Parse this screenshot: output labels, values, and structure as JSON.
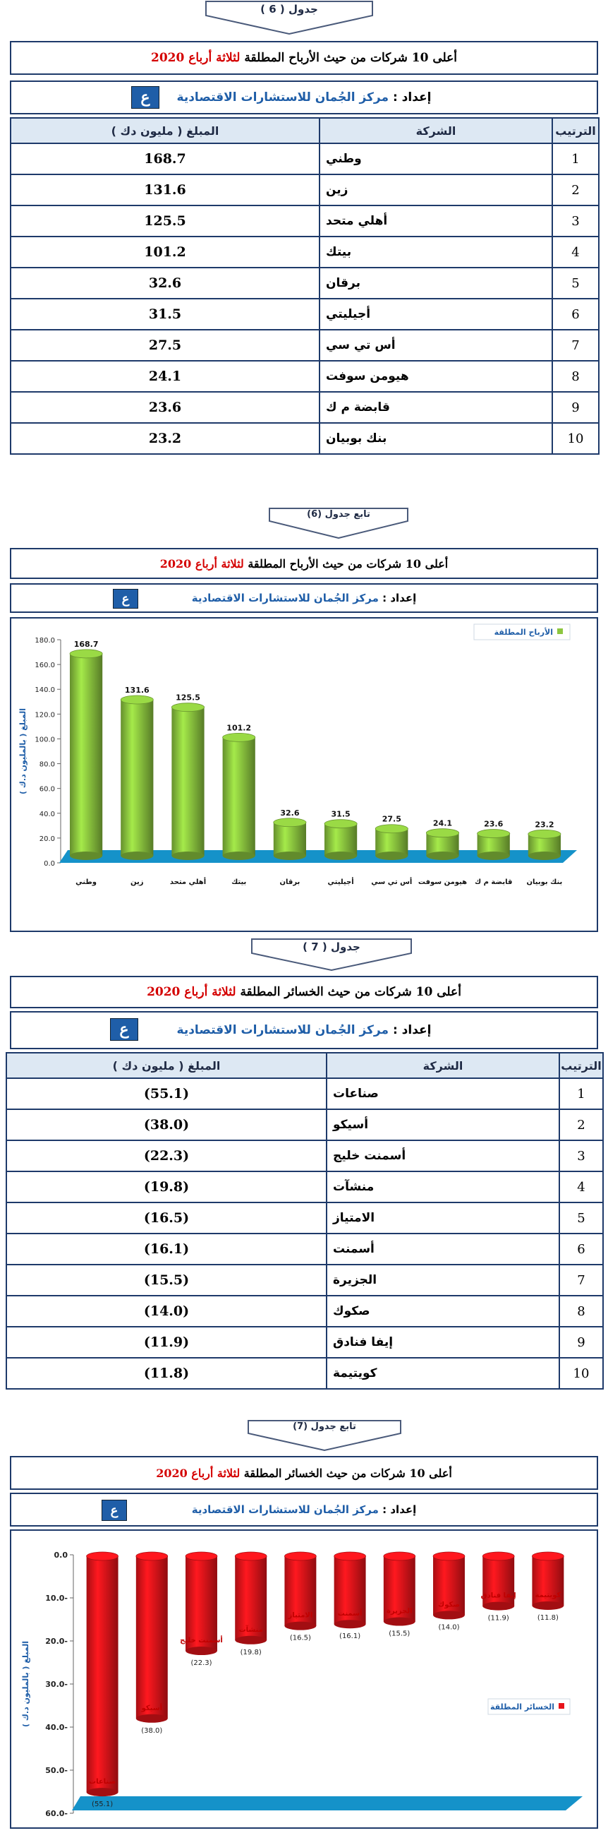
{
  "section6": {
    "table_label": "جدول ( 6 )",
    "title_prefix": "أعلى 10 شركات من حيث الأرباح المطلقة",
    "title_red": "لثلاثة أرباع 2020",
    "prep_label": "إعداد :",
    "prep_org": "مركز الجُمان للاستشارات الاقتصادية",
    "headers": {
      "rank": "الترتيب",
      "company": "الشركة",
      "amount": "المبلغ ( مليون دك )"
    },
    "rows": [
      {
        "rank": "1",
        "company": "وطني",
        "amount": "168.7"
      },
      {
        "rank": "2",
        "company": "زين",
        "amount": "131.6"
      },
      {
        "rank": "3",
        "company": "أهلي متحد",
        "amount": "125.5"
      },
      {
        "rank": "4",
        "company": "بيتك",
        "amount": "101.2"
      },
      {
        "rank": "5",
        "company": "برقان",
        "amount": "32.6"
      },
      {
        "rank": "6",
        "company": "أجيليتي",
        "amount": "31.5"
      },
      {
        "rank": "7",
        "company": "أس تي سي",
        "amount": "27.5"
      },
      {
        "rank": "8",
        "company": "هيومن سوفت",
        "amount": "24.1"
      },
      {
        "rank": "9",
        "company": "قابضة م ك",
        "amount": "23.6"
      },
      {
        "rank": "10",
        "company": "بنك بوبيان",
        "amount": "23.2"
      }
    ]
  },
  "section6b": {
    "table_label": "تابع جدول (6)",
    "title_prefix": "أعلى 10 شركات من حيث الأرباح المطلقة",
    "title_red": "لثلاثة أرباع 2020",
    "prep_label": "إعداد :",
    "prep_org": "مركز الجُمان للاستشارات الاقتصادية"
  },
  "section7": {
    "table_label": "جدول ( 7 )",
    "title_prefix": "أعلى 10 شركات من حيث الخسائر المطلقة",
    "title_red": "لثلاثة أرباع 2020",
    "prep_label": "إعداد :",
    "prep_org": "مركز الجُمان للاستشارات الاقتصادية",
    "headers": {
      "rank": "الترتيب",
      "company": "الشركة",
      "amount": "المبلغ ( مليون دك )"
    },
    "rows": [
      {
        "rank": "1",
        "company": "صناعات",
        "amount": "(55.1)"
      },
      {
        "rank": "2",
        "company": "أسيكو",
        "amount": "(38.0)"
      },
      {
        "rank": "3",
        "company": "أسمنت خليج",
        "amount": "(22.3)"
      },
      {
        "rank": "4",
        "company": "منشآت",
        "amount": "(19.8)"
      },
      {
        "rank": "5",
        "company": "الامتياز",
        "amount": "(16.5)"
      },
      {
        "rank": "6",
        "company": "أسمنت",
        "amount": "(16.1)"
      },
      {
        "rank": "7",
        "company": "الجزيرة",
        "amount": "(15.5)"
      },
      {
        "rank": "8",
        "company": "صكوك",
        "amount": "(14.0)"
      },
      {
        "rank": "9",
        "company": "إيفا فنادق",
        "amount": "(11.9)"
      },
      {
        "rank": "10",
        "company": "كويتيمة",
        "amount": "(11.8)"
      }
    ]
  },
  "section7b": {
    "table_label": "تابع جدول (7)",
    "title_prefix": "أعلى 10 شركات من حيث الخسائر المطلقة",
    "title_red": "لثلاثة أرباع 2020",
    "prep_label": "إعداد :",
    "prep_org": "مركز الجُمان للاستشارات الاقتصادية"
  },
  "logo_glyph": "ع",
  "colors": {
    "profit_bar": "#8cc63f",
    "loss_bar": "#e8141a",
    "floor": "#1592c9",
    "frame": "#1e3a6a",
    "title_red": "#d40000",
    "org_blue": "#1f5ea8"
  },
  "chart_data": [
    {
      "type": "bar",
      "categories": [
        "وطني",
        "زين",
        "أهلي متحد",
        "بيتك",
        "برقان",
        "أجيليتي",
        "أس تي سي",
        "هيومن سوفت",
        "قابضة م ك",
        "بنك بوبيان"
      ],
      "series": [
        {
          "name": "الأرباح المطلقة",
          "values": [
            168.7,
            131.6,
            125.5,
            101.2,
            32.6,
            31.5,
            27.5,
            24.1,
            23.6,
            23.2
          ]
        }
      ],
      "data_labels": [
        "168.7",
        "131.6",
        "125.5",
        "101.2",
        "32.6",
        "31.5",
        "27.5",
        "24.1",
        "23.6",
        "23.2"
      ],
      "yticks": [
        "0.0",
        "20.0",
        "40.0",
        "60.0",
        "80.0",
        "100.0",
        "120.0",
        "140.0",
        "160.0",
        "180.0"
      ],
      "ylabel": "المبلغ ( بالمليون د.ك )",
      "ylim": [
        0,
        180
      ],
      "legend": "top-right",
      "grid": false
    },
    {
      "type": "bar",
      "categories": [
        "صناعات",
        "أسيكو",
        "أسمنت خليج",
        "منشآت",
        "الامتياز",
        "أسمنت",
        "الجزيرة",
        "صكوك",
        "إيفا فنادق",
        "كويتيمة"
      ],
      "series": [
        {
          "name": "الخسائر المطلقة",
          "values": [
            -55.1,
            -38.0,
            -22.3,
            -19.8,
            -16.5,
            -16.1,
            -15.5,
            -14.0,
            -11.9,
            -11.8
          ]
        }
      ],
      "data_labels": [
        "(55.1)",
        "(38.0)",
        "(22.3)",
        "(19.8)",
        "(16.5)",
        "(16.1)",
        "(15.5)",
        "(14.0)",
        "(11.9)",
        "(11.8)"
      ],
      "yticks": [
        "0.0",
        "10.0-",
        "20.0-",
        "30.0-",
        "40.0-",
        "50.0-",
        "60.0-"
      ],
      "ylabel": "المبلغ ( بالمليون د.ك )",
      "ylim": [
        -60,
        0
      ],
      "legend": "right",
      "grid": false
    }
  ]
}
